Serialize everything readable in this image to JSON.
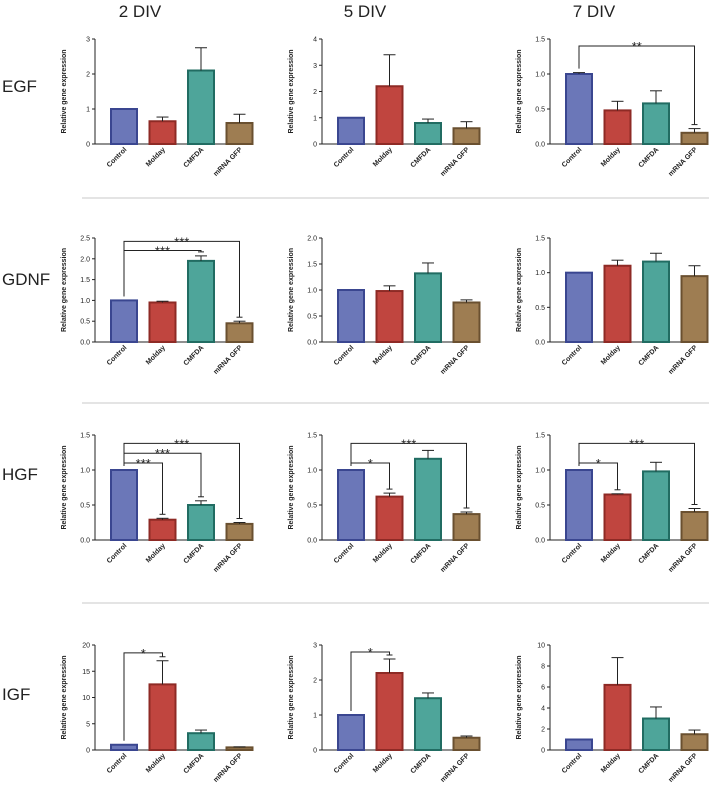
{
  "columns": [
    "2 DIV",
    "5 DIV",
    "7 DIV"
  ],
  "rows": [
    "EGF",
    "GDNF",
    "HGF",
    "IGF"
  ],
  "colors": {
    "Control": "#6b77b8",
    "Molday": "#c0453f",
    "CMFDA": "#4ea59a",
    "mRNA GFP": "#9e7d52",
    "edge_Control": "#3a4690",
    "edge_Molday": "#8e2a25",
    "edge_CMFDA": "#216c62",
    "edge_mRNA GFP": "#6a5030"
  },
  "chart_data": [
    {
      "type": "bar",
      "row": "EGF",
      "column": "2 DIV",
      "categories": [
        "Control",
        "Molday",
        "CMFDA",
        "mRNA GFP"
      ],
      "values": [
        1.0,
        0.65,
        2.1,
        0.6
      ],
      "errors": [
        0,
        0.12,
        0.65,
        0.25
      ],
      "ylabel": "Relative gene expression",
      "ylim": [
        0,
        3
      ],
      "yticks": [
        "0",
        "1",
        "2",
        "3"
      ],
      "significance": []
    },
    {
      "type": "bar",
      "row": "EGF",
      "column": "5 DIV",
      "categories": [
        "Control",
        "Molday",
        "CMFDA",
        "mRNA GFP"
      ],
      "values": [
        1.0,
        2.2,
        0.8,
        0.6
      ],
      "errors": [
        0,
        1.2,
        0.15,
        0.25
      ],
      "ylabel": "Relative gene expression",
      "ylim": [
        0,
        4
      ],
      "yticks": [
        "0",
        "1",
        "2",
        "3",
        "4"
      ],
      "significance": []
    },
    {
      "type": "bar",
      "row": "EGF",
      "column": "7 DIV",
      "categories": [
        "Control",
        "Molday",
        "CMFDA",
        "mRNA GFP"
      ],
      "values": [
        1.0,
        0.48,
        0.58,
        0.16
      ],
      "errors": [
        0.02,
        0.13,
        0.18,
        0.06
      ],
      "ylabel": "Relative gene expression",
      "ylim": [
        0,
        1.5
      ],
      "yticks": [
        "0.0",
        "0.5",
        "1.0",
        "1.5"
      ],
      "significance": [
        {
          "from": 0,
          "to": 3,
          "label": "**",
          "y": 1.4
        }
      ]
    },
    {
      "type": "bar",
      "row": "GDNF",
      "column": "2 DIV",
      "categories": [
        "Control",
        "Molday",
        "CMFDA",
        "mRNA GFP"
      ],
      "values": [
        1.0,
        0.95,
        1.95,
        0.45
      ],
      "errors": [
        0,
        0.03,
        0.12,
        0.05
      ],
      "ylabel": "Relative gene expression",
      "ylim": [
        0,
        2.5
      ],
      "yticks": [
        "0.0",
        "0.5",
        "1.0",
        "1.5",
        "2.0",
        "2.5"
      ],
      "significance": [
        {
          "from": 0,
          "to": 2,
          "label": "***",
          "y": 2.2
        },
        {
          "from": 0,
          "to": 3,
          "label": "***",
          "y": 2.42
        }
      ]
    },
    {
      "type": "bar",
      "row": "GDNF",
      "column": "5 DIV",
      "categories": [
        "Control",
        "Molday",
        "CMFDA",
        "mRNA GFP"
      ],
      "values": [
        1.0,
        0.98,
        1.32,
        0.76
      ],
      "errors": [
        0,
        0.1,
        0.2,
        0.05
      ],
      "ylabel": "Relative gene expression",
      "ylim": [
        0,
        2.0
      ],
      "yticks": [
        "0.0",
        "0.5",
        "1.0",
        "1.5",
        "2.0"
      ],
      "significance": []
    },
    {
      "type": "bar",
      "row": "GDNF",
      "column": "7 DIV",
      "categories": [
        "Control",
        "Molday",
        "CMFDA",
        "mRNA GFP"
      ],
      "values": [
        1.0,
        1.1,
        1.16,
        0.95
      ],
      "errors": [
        0,
        0.08,
        0.12,
        0.15
      ],
      "ylabel": "Relative gene expression",
      "ylim": [
        0,
        1.5
      ],
      "yticks": [
        "0.0",
        "0.5",
        "1.0",
        "1.5"
      ],
      "significance": []
    },
    {
      "type": "bar",
      "row": "HGF",
      "column": "2 DIV",
      "categories": [
        "Control",
        "Molday",
        "CMFDA",
        "mRNA GFP"
      ],
      "values": [
        1.0,
        0.29,
        0.5,
        0.23
      ],
      "errors": [
        0,
        0.02,
        0.06,
        0.02
      ],
      "ylabel": "Relative gene expression",
      "ylim": [
        0,
        1.5
      ],
      "yticks": [
        "0.0",
        "0.5",
        "1.0",
        "1.5"
      ],
      "significance": [
        {
          "from": 0,
          "to": 1,
          "label": "***",
          "y": 1.1
        },
        {
          "from": 0,
          "to": 2,
          "label": "***",
          "y": 1.24
        },
        {
          "from": 0,
          "to": 3,
          "label": "***",
          "y": 1.38
        }
      ]
    },
    {
      "type": "bar",
      "row": "HGF",
      "column": "5 DIV",
      "categories": [
        "Control",
        "Molday",
        "CMFDA",
        "mRNA GFP"
      ],
      "values": [
        1.0,
        0.62,
        1.16,
        0.37
      ],
      "errors": [
        0,
        0.05,
        0.12,
        0.03
      ],
      "ylabel": "Relative gene expression",
      "ylim": [
        0,
        1.5
      ],
      "yticks": [
        "0.0",
        "0.5",
        "1.0",
        "1.5"
      ],
      "significance": [
        {
          "from": 0,
          "to": 1,
          "label": "*",
          "y": 1.1
        },
        {
          "from": 0,
          "to": 3,
          "label": "***",
          "y": 1.38
        }
      ]
    },
    {
      "type": "bar",
      "row": "HGF",
      "column": "7 DIV",
      "categories": [
        "Control",
        "Molday",
        "CMFDA",
        "mRNA GFP"
      ],
      "values": [
        1.0,
        0.65,
        0.98,
        0.4
      ],
      "errors": [
        0,
        0.01,
        0.13,
        0.05
      ],
      "ylabel": "Relative gene expression",
      "ylim": [
        0,
        1.5
      ],
      "yticks": [
        "0.0",
        "0.5",
        "1.0",
        "1.5"
      ],
      "significance": [
        {
          "from": 0,
          "to": 1,
          "label": "*",
          "y": 1.1
        },
        {
          "from": 0,
          "to": 3,
          "label": "***",
          "y": 1.38
        }
      ]
    },
    {
      "type": "bar",
      "row": "IGF",
      "column": "2 DIV",
      "categories": [
        "Control",
        "Molday",
        "CMFDA",
        "mRNA GFP"
      ],
      "values": [
        1.0,
        12.5,
        3.2,
        0.5
      ],
      "errors": [
        0,
        4.5,
        0.6,
        0.1
      ],
      "ylabel": "Relative gene expression",
      "ylim": [
        0,
        20
      ],
      "yticks": [
        "0",
        "5",
        "10",
        "15",
        "20"
      ],
      "significance": [
        {
          "from": 0,
          "to": 1,
          "label": "*",
          "y": 18.5
        }
      ]
    },
    {
      "type": "bar",
      "row": "IGF",
      "column": "5 DIV",
      "categories": [
        "Control",
        "Molday",
        "CMFDA",
        "mRNA GFP"
      ],
      "values": [
        1.0,
        2.2,
        1.48,
        0.35
      ],
      "errors": [
        0,
        0.4,
        0.15,
        0.05
      ],
      "ylabel": "Relative gene expression",
      "ylim": [
        0,
        3
      ],
      "yticks": [
        "0",
        "1",
        "2",
        "3"
      ],
      "significance": [
        {
          "from": 0,
          "to": 1,
          "label": "*",
          "y": 2.8
        }
      ]
    },
    {
      "type": "bar",
      "row": "IGF",
      "column": "7 DIV",
      "categories": [
        "Control",
        "Molday",
        "CMFDA",
        "mRNA GFP"
      ],
      "values": [
        1.0,
        6.2,
        3.0,
        1.5
      ],
      "errors": [
        0,
        2.6,
        1.1,
        0.4
      ],
      "ylabel": "Relative gene expression",
      "ylim": [
        0,
        10
      ],
      "yticks": [
        "0",
        "2",
        "4",
        "6",
        "8",
        "10"
      ],
      "significance": []
    }
  ]
}
